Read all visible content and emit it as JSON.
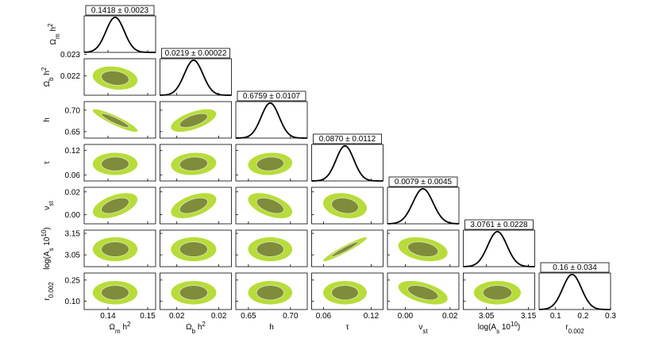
{
  "chart_data": {
    "type": "corner",
    "outer_color": "#b8dc3a",
    "inner_color": "#7f8c3c",
    "parameters": [
      {
        "name": [
          {
            "text": "Ω"
          },
          {
            "text": "m",
            "sub": true
          },
          {
            "text": " h"
          },
          {
            "text": "2",
            "sup": true
          }
        ],
        "summary": "0.1418 ± 0.0023",
        "mean": 0.1418,
        "sigma": 0.0023,
        "lim": [
          0.134,
          0.152
        ],
        "xticks": [
          0.14,
          0.15
        ],
        "yticks": []
      },
      {
        "name": [
          {
            "text": "Ω"
          },
          {
            "text": "b",
            "sub": true
          },
          {
            "text": " h"
          },
          {
            "text": "2",
            "sup": true
          }
        ],
        "summary": "0.0219 ± 0.00022",
        "mean": 0.0219,
        "sigma": 0.00022,
        "lim": [
          0.0211,
          0.0228
        ],
        "xticks": [
          {
            "value": 0.0215,
            "label": "0.02"
          },
          {
            "value": 0.0225,
            "label": "0.02"
          }
        ],
        "yticks": [
          0.022,
          0.023
        ]
      },
      {
        "name": [
          {
            "text": "h"
          }
        ],
        "summary": "0.6759 ± 0.0107",
        "mean": 0.6759,
        "sigma": 0.0107,
        "lim": [
          0.635,
          0.72
        ],
        "xticks": [
          0.65,
          {
            "value": 0.7,
            "label": "0.70"
          }
        ],
        "yticks": [
          0.65,
          {
            "value": 0.7,
            "label": "0.70"
          }
        ]
      },
      {
        "name": [
          {
            "text": "τ"
          }
        ],
        "summary": "0.0870 ± 0.0112",
        "mean": 0.087,
        "sigma": 0.0112,
        "lim": [
          0.045,
          0.135
        ],
        "xticks": [
          0.06,
          0.12
        ],
        "yticks": [
          0.06,
          0.12
        ]
      },
      {
        "name": [
          {
            "text": "ν"
          },
          {
            "text": "st",
            "sub": true
          }
        ],
        "summary": "0.0079 ± 0.0045",
        "mean": 0.0079,
        "sigma": 0.0045,
        "lim": [
          -0.008,
          0.024
        ],
        "xticks": [
          {
            "value": 0,
            "label": "0.00"
          },
          0.02
        ],
        "yticks": [
          {
            "value": 0,
            "label": "0.00"
          },
          0.02
        ]
      },
      {
        "name": [
          {
            "text": "log(A"
          },
          {
            "text": "s",
            "sub": true
          },
          {
            "text": " 10"
          },
          {
            "text": "10",
            "sup": true
          },
          {
            "text": ")"
          }
        ],
        "summary": "3.0761 ± 0.0228",
        "mean": 3.0761,
        "sigma": 0.0228,
        "lim": [
          2.995,
          3.165
        ],
        "xticks": [
          3.05,
          3.15
        ],
        "yticks": [
          3.05,
          3.15
        ]
      },
      {
        "name": [
          {
            "text": "r"
          },
          {
            "text": "0.002",
            "sub": true
          }
        ],
        "summary": "0.16 ± 0.034",
        "mean": 0.16,
        "sigma": 0.034,
        "lim": [
          0.04,
          0.3
        ],
        "xticks": [
          0.1,
          0.2,
          0.3
        ],
        "yticks": [
          {
            "value": 0.1,
            "label": "0.10"
          },
          0.25
        ]
      }
    ],
    "correlations": [
      [
        -0.2
      ],
      [
        -0.9,
        0.6
      ],
      [
        0,
        0.1,
        0.1
      ],
      [
        0.5,
        0.5,
        -0.5,
        -0.2
      ],
      [
        0,
        0,
        0,
        0.95,
        -0.3
      ],
      [
        0,
        0,
        0,
        0,
        -0.5,
        0
      ]
    ]
  }
}
